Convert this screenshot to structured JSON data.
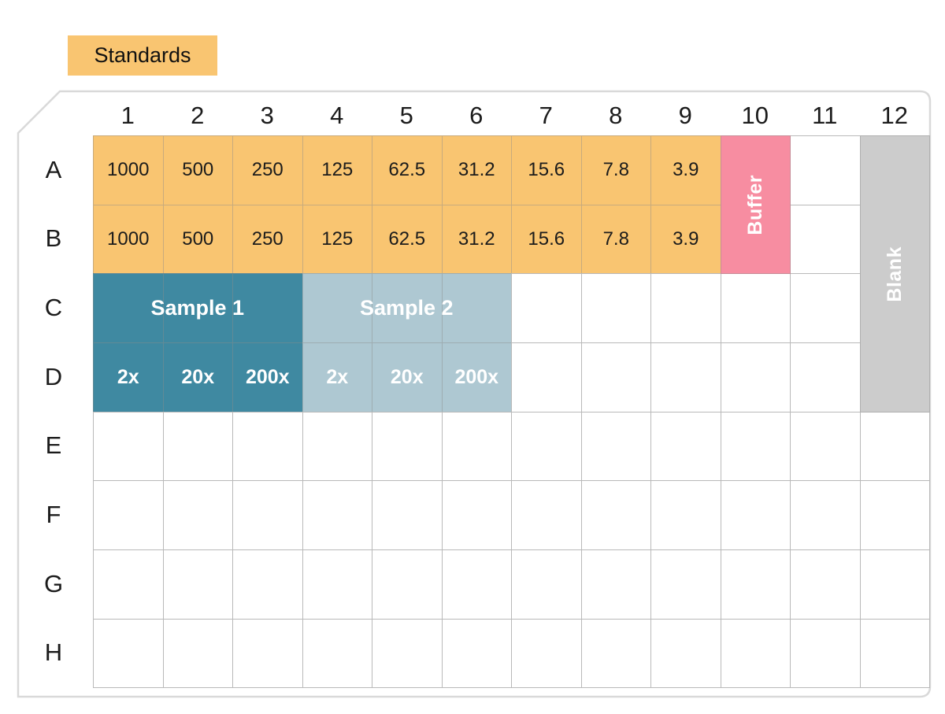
{
  "figure": {
    "legend": {
      "label": "Standards"
    },
    "plate": {
      "column_headers": [
        "1",
        "2",
        "3",
        "4",
        "5",
        "6",
        "7",
        "8",
        "9",
        "10",
        "11",
        "12"
      ],
      "row_headers": [
        "A",
        "B",
        "C",
        "D",
        "E",
        "F",
        "G",
        "H"
      ],
      "standards": {
        "rows": [
          "A",
          "B"
        ],
        "columns": [
          "1",
          "2",
          "3",
          "4",
          "5",
          "6",
          "7",
          "8",
          "9"
        ],
        "values": [
          "1000",
          "500",
          "250",
          "125",
          "62.5",
          "31.2",
          "15.6",
          "7.8",
          "3.9"
        ]
      },
      "buffer": {
        "label": "Buffer",
        "column": "10",
        "rows": [
          "A",
          "B"
        ]
      },
      "blank": {
        "label": "Blank",
        "column": "12",
        "rows": [
          "A",
          "B",
          "C",
          "D"
        ]
      },
      "samples": [
        {
          "label": "Sample 1",
          "dilutions": [
            "2x",
            "20x",
            "200x"
          ],
          "columns": [
            "1",
            "2",
            "3"
          ],
          "label_row": "C",
          "dilution_row": "D"
        },
        {
          "label": "Sample 2",
          "dilutions": [
            "2x",
            "20x",
            "200x"
          ],
          "columns": [
            "4",
            "5",
            "6"
          ],
          "label_row": "C",
          "dilution_row": "D"
        }
      ]
    },
    "colors": {
      "standard": "#F9C571",
      "buffer": "#F78DA1",
      "blank": "#CCCCCC",
      "sample_1": "#3F89A1",
      "sample_2": "#AEC8D2",
      "grid_line": "#B9B9B9",
      "plate_outline": "#D9D9D9",
      "text_dark": "#1B1B1B",
      "text_light": "#FFFFFF"
    }
  }
}
